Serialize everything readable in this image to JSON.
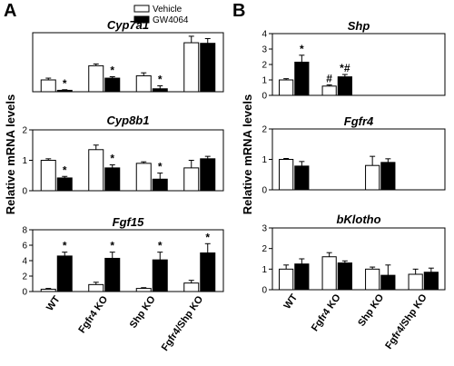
{
  "figure": {
    "panel_labels": [
      "A",
      "B"
    ],
    "y_axis_label": "Relative mRNA levels",
    "categories": [
      "WT",
      "Fgfr4  KO",
      "Shp KO",
      "Fgfr4/Shp KO"
    ],
    "legend": [
      "Vehicle",
      "GW4064"
    ],
    "colors": {
      "vehicle": "#ffffff",
      "gw4064": "#000000",
      "axis": "#000000"
    }
  },
  "chart_data": [
    {
      "type": "bar",
      "panel": "A",
      "title": "Cyp7a1",
      "categories": [
        "WT",
        "Fgfr4  KO",
        "Shp KO",
        "Fgfr4/Shp KO"
      ],
      "ylim": [
        0,
        5
      ],
      "yticks": [],
      "series": [
        {
          "name": "Vehicle",
          "values": [
            1.0,
            2.2,
            1.35,
            4.15
          ],
          "errors": [
            0.15,
            0.15,
            0.25,
            0.55
          ]
        },
        {
          "name": "GW4064",
          "values": [
            0.12,
            1.15,
            0.25,
            4.1
          ],
          "errors": [
            0.05,
            0.12,
            0.25,
            0.4
          ]
        }
      ],
      "annotations": [
        {
          "category": 0,
          "series": 1,
          "text": "*"
        },
        {
          "category": 1,
          "series": 1,
          "text": "*"
        },
        {
          "category": 2,
          "series": 1,
          "text": "*"
        }
      ]
    },
    {
      "type": "bar",
      "panel": "A",
      "title": "Cyp8b1",
      "categories": [
        "WT",
        "Fgfr4  KO",
        "Shp KO",
        "Fgfr4/Shp KO"
      ],
      "ylim": [
        0,
        2
      ],
      "yticks": [
        "0",
        "1",
        "2"
      ],
      "series": [
        {
          "name": "Vehicle",
          "values": [
            1.0,
            1.35,
            0.9,
            0.75
          ],
          "errors": [
            0.05,
            0.15,
            0.05,
            0.25
          ]
        },
        {
          "name": "GW4064",
          "values": [
            0.42,
            0.75,
            0.38,
            1.05
          ],
          "errors": [
            0.05,
            0.1,
            0.2,
            0.08
          ]
        }
      ],
      "annotations": [
        {
          "category": 0,
          "series": 1,
          "text": "*"
        },
        {
          "category": 1,
          "series": 1,
          "text": "*"
        },
        {
          "category": 2,
          "series": 1,
          "text": "*"
        }
      ]
    },
    {
      "type": "bar",
      "panel": "A",
      "title": "Fgf15",
      "categories": [
        "WT",
        "Fgfr4  KO",
        "Shp KO",
        "Fgfr4/Shp KO"
      ],
      "ylim": [
        0,
        8
      ],
      "yticks": [
        "0",
        "2",
        "4",
        "6",
        "8"
      ],
      "series": [
        {
          "name": "Vehicle",
          "values": [
            0.3,
            0.9,
            0.4,
            1.1
          ],
          "errors": [
            0.1,
            0.3,
            0.1,
            0.35
          ]
        },
        {
          "name": "GW4064",
          "values": [
            4.6,
            4.3,
            4.1,
            5.0
          ],
          "errors": [
            0.5,
            0.8,
            1.0,
            1.2
          ]
        }
      ],
      "annotations": [
        {
          "category": 0,
          "series": 1,
          "text": "*"
        },
        {
          "category": 1,
          "series": 1,
          "text": "*"
        },
        {
          "category": 2,
          "series": 1,
          "text": "*"
        },
        {
          "category": 3,
          "series": 1,
          "text": "*"
        }
      ]
    },
    {
      "type": "bar",
      "panel": "B",
      "title": "Shp",
      "categories": [
        "WT",
        "Fgfr4  KO",
        "Shp KO",
        "Fgfr4/Shp KO"
      ],
      "ylim": [
        0,
        4
      ],
      "yticks": [
        "0",
        "1",
        "2",
        "3",
        "4"
      ],
      "series": [
        {
          "name": "Vehicle",
          "values": [
            1.0,
            0.6,
            0.0,
            0.0
          ],
          "errors": [
            0.08,
            0.08,
            0,
            0
          ]
        },
        {
          "name": "GW4064",
          "values": [
            2.15,
            1.2,
            0.0,
            0.0
          ],
          "errors": [
            0.45,
            0.15,
            0,
            0
          ]
        }
      ],
      "annotations": [
        {
          "category": 0,
          "series": 1,
          "text": "*"
        },
        {
          "category": 1,
          "series": 0,
          "text": "#"
        },
        {
          "category": 1,
          "series": 1,
          "text": "*#"
        }
      ]
    },
    {
      "type": "bar",
      "panel": "B",
      "title": "Fgfr4",
      "categories": [
        "WT",
        "Fgfr4  KO",
        "Shp KO",
        "Fgfr4/Shp KO"
      ],
      "ylim": [
        0,
        2
      ],
      "yticks": [
        "0",
        "1",
        "2"
      ],
      "series": [
        {
          "name": "Vehicle",
          "values": [
            1.0,
            0.0,
            0.8,
            0.0
          ],
          "errors": [
            0.03,
            0,
            0.3,
            0
          ]
        },
        {
          "name": "GW4064",
          "values": [
            0.78,
            0.0,
            0.9,
            0.0
          ],
          "errors": [
            0.15,
            0,
            0.12,
            0
          ]
        }
      ],
      "annotations": []
    },
    {
      "type": "bar",
      "panel": "B",
      "title": "bKlotho",
      "categories": [
        "WT",
        "Fgfr4  KO",
        "Shp KO",
        "Fgfr4/Shp KO"
      ],
      "ylim": [
        0,
        3
      ],
      "yticks": [
        "0",
        "1",
        "2",
        "3"
      ],
      "series": [
        {
          "name": "Vehicle",
          "values": [
            1.0,
            1.6,
            1.0,
            0.75
          ],
          "errors": [
            0.2,
            0.2,
            0.1,
            0.25
          ]
        },
        {
          "name": "GW4064",
          "values": [
            1.25,
            1.3,
            0.7,
            0.85
          ],
          "errors": [
            0.25,
            0.1,
            0.5,
            0.2
          ]
        }
      ],
      "annotations": []
    }
  ]
}
